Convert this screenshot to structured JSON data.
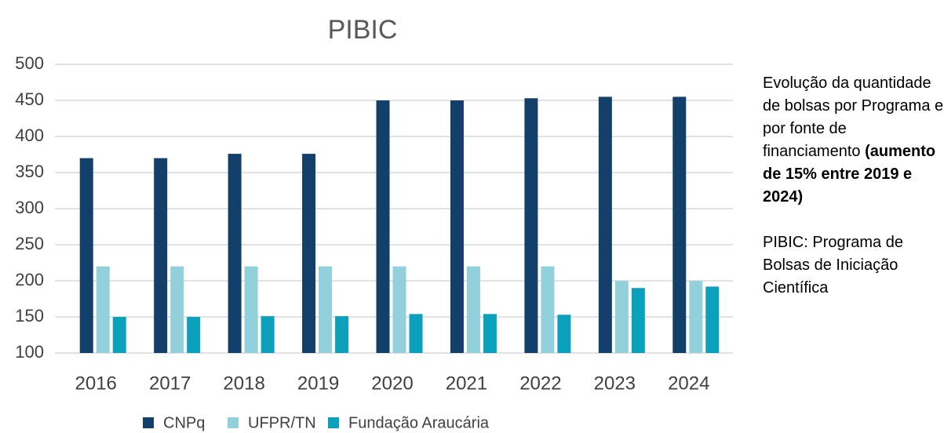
{
  "chart_data": {
    "type": "bar",
    "title": "PIBIC",
    "categories": [
      "2016",
      "2017",
      "2018",
      "2019",
      "2020",
      "2021",
      "2022",
      "2023",
      "2024"
    ],
    "series": [
      {
        "name": "CNPq",
        "color": "#12406b",
        "values": [
          370,
          370,
          376,
          376,
          450,
          450,
          453,
          455,
          455
        ]
      },
      {
        "name": "UFPR/TN",
        "color": "#92d0dc",
        "values": [
          220,
          220,
          220,
          220,
          220,
          220,
          220,
          200,
          200
        ]
      },
      {
        "name": "Fundação Araucária",
        "color": "#0ba1bd",
        "values": [
          150,
          150,
          151,
          151,
          154,
          154,
          153,
          190,
          192
        ]
      }
    ],
    "ylim": [
      100,
      500
    ],
    "yticks": [
      100,
      150,
      200,
      250,
      300,
      350,
      400,
      450,
      500
    ],
    "grid": true,
    "legend": "bottom"
  },
  "side_notes": {
    "paragraph_1": {
      "text": "Evolução da quantidade de bolsas por Programa e por fonte de financiamento",
      "bold": "(aumento de 15% entre 2019 e 2024)"
    },
    "paragraph_2": "PIBIC: Programa de Bolsas de Iniciação Científica"
  }
}
